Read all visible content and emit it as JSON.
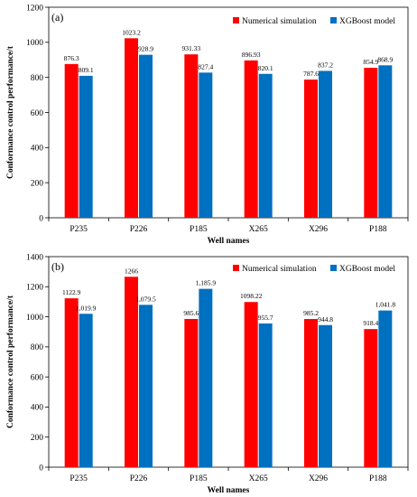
{
  "chart_data": [
    {
      "type": "bar",
      "panel_label": "(a)",
      "categories": [
        "P235",
        "P226",
        "P185",
        "X265",
        "X296",
        "P188"
      ],
      "series": [
        {
          "name": "Numerical simulation",
          "color": "#ff0000",
          "values": [
            876.3,
            1023.2,
            931.33,
            896.93,
            787.6,
            854.9
          ],
          "labels": [
            "876.3",
            "1023.2",
            "931.33",
            "896.93",
            "787.6",
            "854.9"
          ]
        },
        {
          "name": "XGBoost model",
          "color": "#0070c0",
          "values": [
            809.1,
            928.9,
            827.4,
            820.1,
            837.2,
            868.9
          ],
          "labels": [
            "809.1",
            "928.9",
            "827.4",
            "820.1",
            "837.2",
            "868.9"
          ]
        }
      ],
      "ylim": [
        0,
        1200
      ],
      "yticks": [
        "0",
        "200",
        "400",
        "600",
        "800",
        "1000",
        "1200"
      ],
      "xlabel": "Well names",
      "ylabel": "Conformance control performance/t",
      "legend_position": "top-right",
      "grid": false
    },
    {
      "type": "bar",
      "panel_label": "(b)",
      "categories": [
        "P235",
        "P226",
        "P185",
        "X265",
        "X296",
        "P188"
      ],
      "series": [
        {
          "name": "Numerical simulation",
          "color": "#ff0000",
          "values": [
            1122.9,
            1266,
            985.6,
            1098.22,
            985.2,
            918.4
          ],
          "labels": [
            "1122.9",
            "1266",
            "985.6",
            "1098.22",
            "985.2",
            "918.4"
          ]
        },
        {
          "name": "XGBoost model",
          "color": "#0070c0",
          "values": [
            1019.9,
            1079.5,
            1185.9,
            955.7,
            944.8,
            1041.8
          ],
          "labels": [
            "1,019.9",
            "1,079.5",
            "1,185.9",
            "955.7",
            "944.8",
            "1,041.8"
          ]
        }
      ],
      "ylim": [
        0,
        1400
      ],
      "yticks": [
        "0",
        "200",
        "400",
        "600",
        "800",
        "1000",
        "1200",
        "1400"
      ],
      "xlabel": "Well names",
      "ylabel": "Conformance control performance/t",
      "legend_position": "top-right",
      "grid": false
    }
  ]
}
